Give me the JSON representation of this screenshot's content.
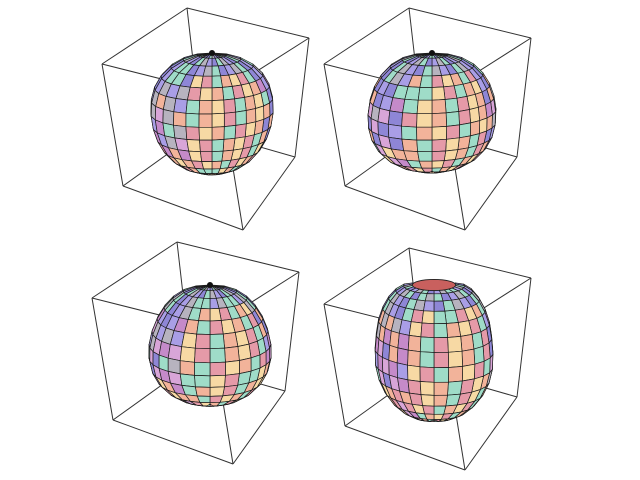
{
  "figure": {
    "background": "#ffffff",
    "line_color": "#1c1c1c",
    "box_color": "#333333",
    "palette": [
      "#8e86d6",
      "#a99ee6",
      "#c58ac9",
      "#e59aa8",
      "#f2b39a",
      "#f7d9a4",
      "#9fdcc8",
      "#b7b3bf",
      "#d8a5d8",
      "#7f7ad8"
    ],
    "panels": [
      {
        "id": "top-left",
        "shape": "rounded-blob",
        "opening_top": false
      },
      {
        "id": "top-right",
        "shape": "rounded-blob",
        "opening_top": false
      },
      {
        "id": "bottom-left",
        "shape": "rounded-blob",
        "opening_top": false
      },
      {
        "id": "bottom-right",
        "shape": "bell-with-opening",
        "opening_top": true
      }
    ]
  }
}
